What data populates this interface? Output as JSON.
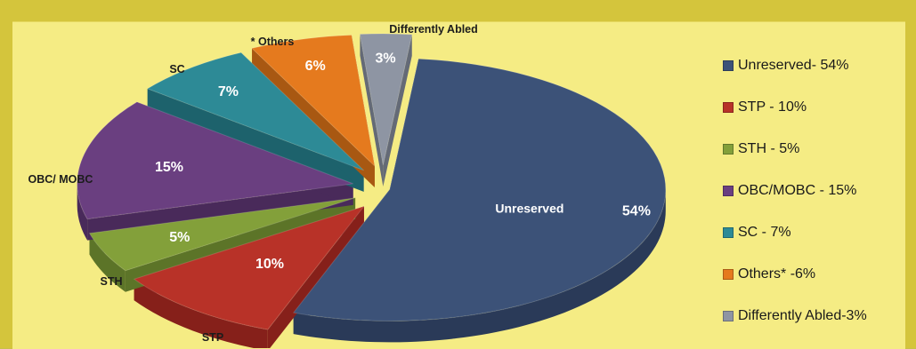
{
  "chart_data": {
    "type": "pie",
    "style": "3d-exploded",
    "title": "",
    "slices": [
      {
        "label": "Unreserved",
        "value": 54,
        "pct_text": "54%",
        "legend": "Unreserved- 54%",
        "color": "#3c5278",
        "side": "#2a3a58",
        "inner_name": "Unreserved"
      },
      {
        "label": "STP",
        "value": 10,
        "pct_text": "10%",
        "legend": "STP - 10%",
        "color": "#b83228",
        "side": "#86201a",
        "inner_name": ""
      },
      {
        "label": "STH",
        "value": 5,
        "pct_text": "5%",
        "legend": "STH - 5%",
        "color": "#83a03a",
        "side": "#5c7428",
        "inner_name": ""
      },
      {
        "label": "OBC/ MOBC",
        "value": 15,
        "pct_text": "15%",
        "legend": "OBC/MOBC - 15%",
        "color": "#6a3f80",
        "side": "#492a5a",
        "inner_name": ""
      },
      {
        "label": "SC",
        "value": 7,
        "pct_text": "7%",
        "legend": "SC - 7%",
        "color": "#2d8a96",
        "side": "#1d626c",
        "inner_name": ""
      },
      {
        "label": "* Others",
        "value": 6,
        "pct_text": "6%",
        "legend": "Others* -6%",
        "color": "#e57a1e",
        "side": "#a85812",
        "inner_name": ""
      },
      {
        "label": "Differently Abled",
        "value": 3,
        "pct_text": "3%",
        "legend": "Differently Abled-3%",
        "color": "#8e95a3",
        "side": "#646a76",
        "inner_name": ""
      }
    ],
    "legend_position": "right"
  }
}
